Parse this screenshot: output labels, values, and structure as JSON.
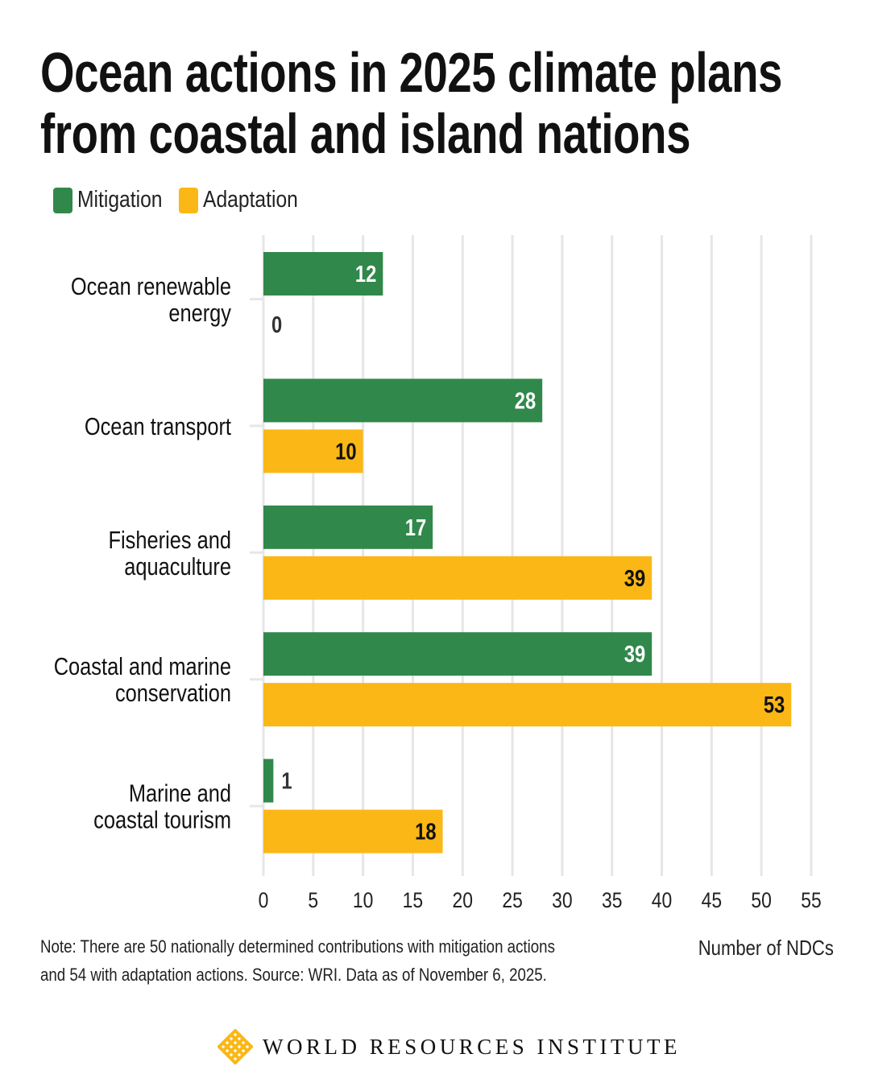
{
  "title_line1": "Ocean actions in 2025 climate plans",
  "title_line2": "from coastal and island nations",
  "note_line1": "Note: There are 50 nationally determined contributions with mitigation actions",
  "note_line2": "and 54 with adaptation actions. Source: WRI. Data as of November 6, 2025.",
  "logo_text": "WORLD RESOURCES INSTITUTE",
  "colors": {
    "mitigation": "#31884b",
    "adaptation": "#fbb715",
    "grid": "#e6e6e6"
  },
  "chart_data": {
    "type": "bar",
    "orientation": "horizontal",
    "title": "Ocean actions in 2025 climate plans from coastal and island nations",
    "xlabel": "Number of NDCs",
    "ylabel": "",
    "xlim": [
      0,
      55
    ],
    "xticks": [
      0,
      5,
      10,
      15,
      20,
      25,
      30,
      35,
      40,
      45,
      50,
      55
    ],
    "grid": true,
    "legend_placement": "top-left",
    "categories": [
      [
        "Ocean renewable",
        "energy"
      ],
      [
        "Ocean transport"
      ],
      [
        "Fisheries and",
        "aquaculture"
      ],
      [
        "Coastal and marine",
        "conservation"
      ],
      [
        "Marine and",
        "coastal tourism"
      ]
    ],
    "series": [
      {
        "name": "Mitigation",
        "values": [
          12,
          28,
          17,
          39,
          1
        ]
      },
      {
        "name": "Adaptation",
        "values": [
          0,
          10,
          39,
          53,
          18
        ]
      }
    ]
  }
}
